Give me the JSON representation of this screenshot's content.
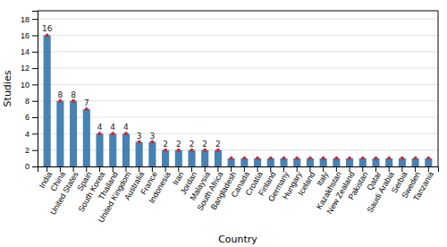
{
  "chart_data": {
    "type": "bar",
    "xlabel": "Country",
    "ylabel": "Studies",
    "categories": [
      "India",
      "China",
      "United States",
      "Spain",
      "South Korea",
      "Thailand",
      "United Kingdom",
      "Australia",
      "France",
      "Indonesia",
      "Iran",
      "Jordan",
      "Malaysia",
      "South Africa",
      "Bangladesh",
      "Canada",
      "Croatia",
      "Finland",
      "Germany",
      "Hungary",
      "Iceland",
      "Italy",
      "Kazakhstan",
      "New Zealand",
      "Pakistan",
      "Qatar",
      "Saudi Arabia",
      "Serbia",
      "Sweden",
      "Tanzania"
    ],
    "values": [
      16,
      8,
      8,
      7,
      4,
      4,
      4,
      3,
      3,
      2,
      2,
      2,
      2,
      2,
      1,
      1,
      1,
      1,
      1,
      1,
      1,
      1,
      1,
      1,
      1,
      1,
      1,
      1,
      1,
      1
    ],
    "value_labels": [
      "16",
      "8",
      "8",
      "7",
      "4",
      "4",
      "4",
      "3",
      "3",
      "2",
      "2",
      "2",
      "2",
      "2",
      null,
      null,
      null,
      null,
      null,
      null,
      null,
      null,
      null,
      null,
      null,
      null,
      null,
      null,
      null,
      null
    ],
    "data_labels": true,
    "marker": "circle",
    "ylim": [
      0,
      19
    ],
    "yticks": [
      0,
      2,
      4,
      6,
      8,
      10,
      12,
      14,
      16,
      18
    ],
    "grid": true
  }
}
